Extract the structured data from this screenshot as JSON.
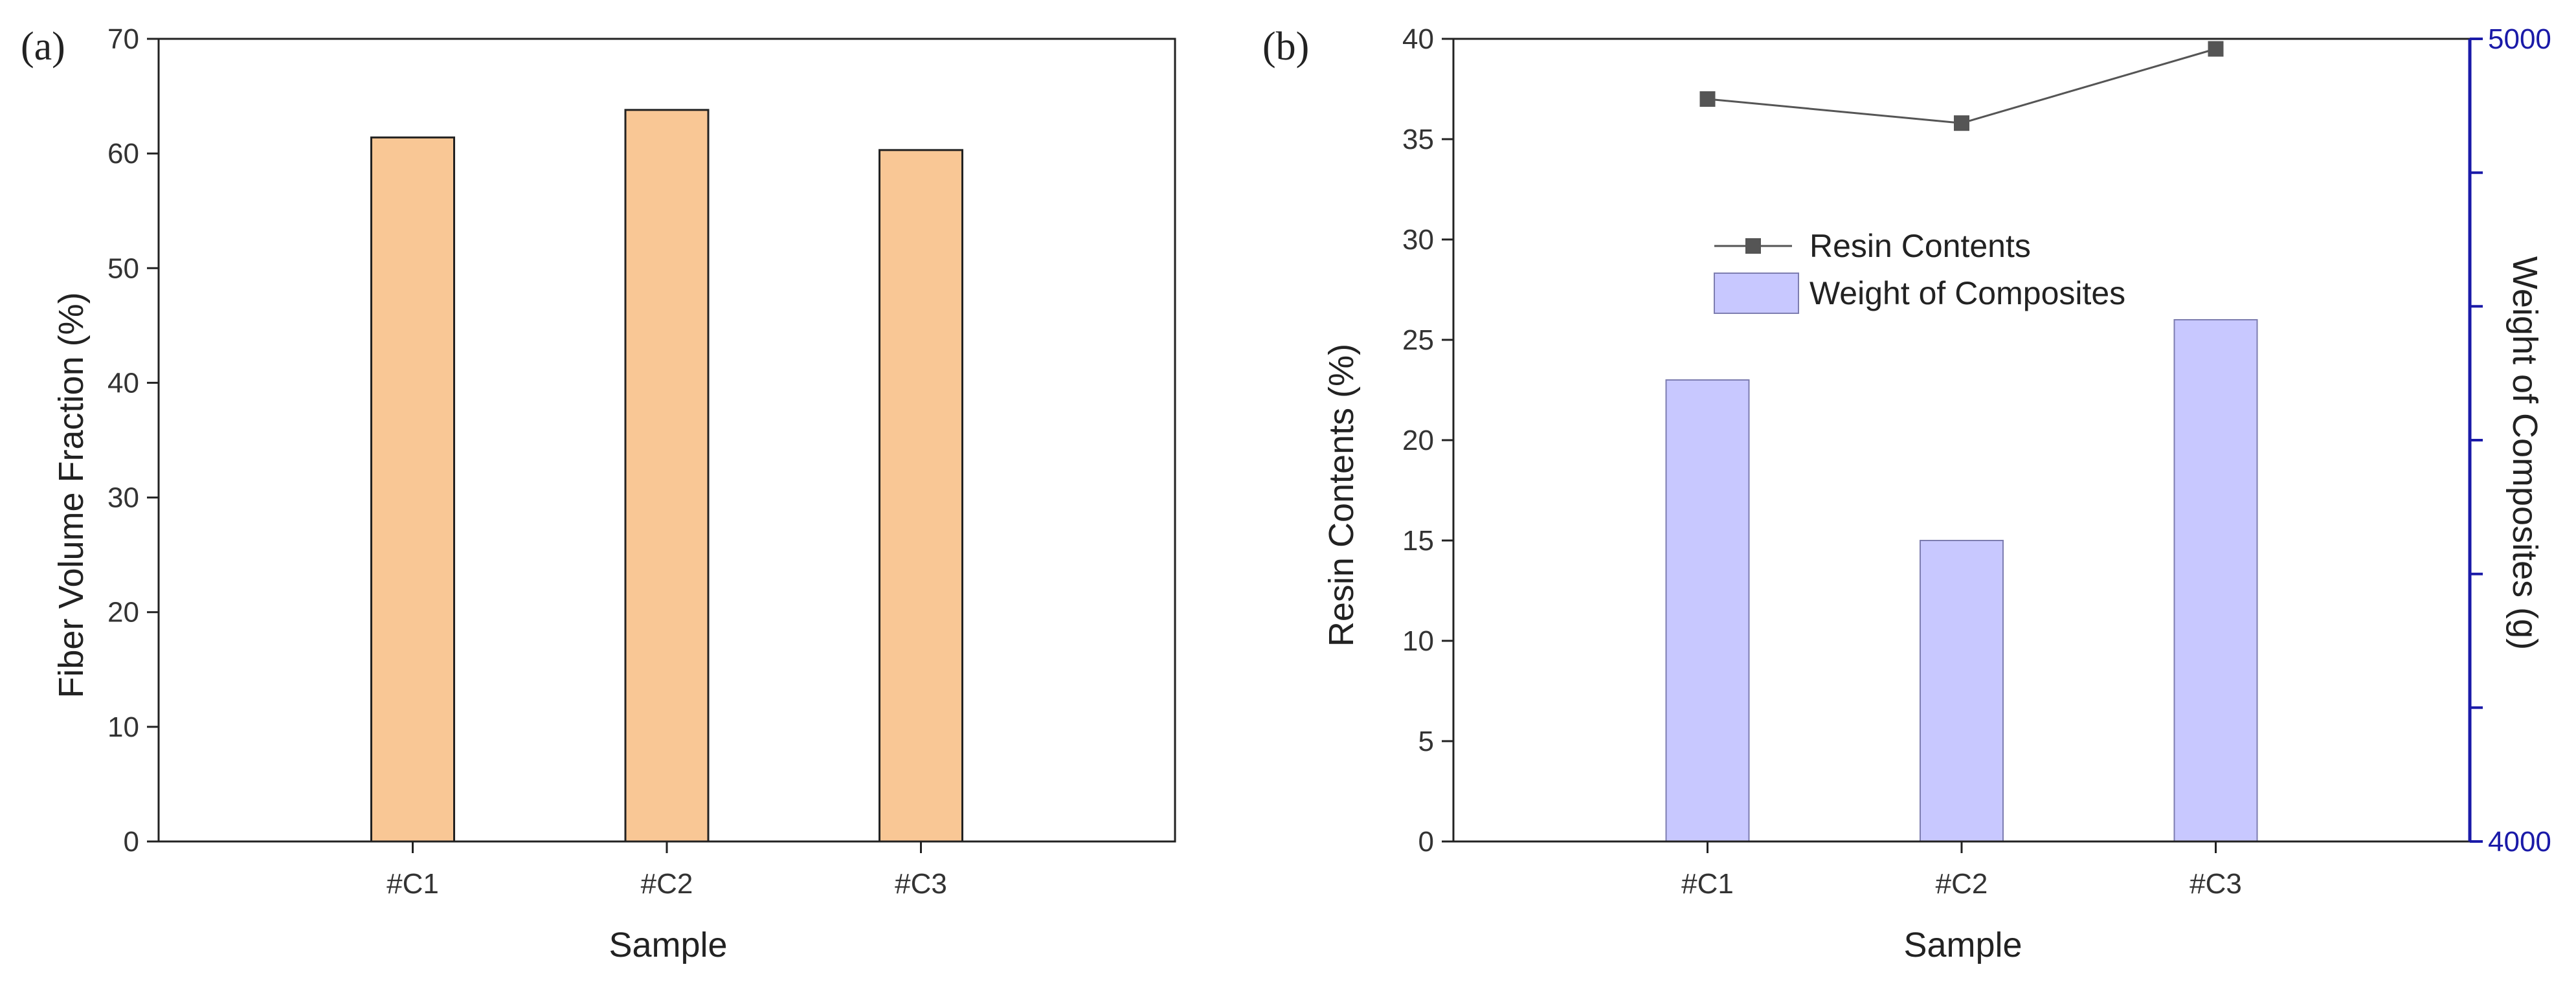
{
  "chart_data": [
    {
      "panel_label": "(a)",
      "type": "bar",
      "categories": [
        "#C1",
        "#C2",
        "#C3"
      ],
      "values": [
        61.4,
        63.8,
        60.3
      ],
      "xlabel": "Sample",
      "ylabel": "Fiber Volume Fraction (%)",
      "ylim": [
        0,
        70
      ],
      "yticks": [
        0,
        10,
        20,
        30,
        40,
        50,
        60,
        70
      ],
      "grid": false,
      "colors": {
        "bar_fill": "#f9c795",
        "bar_stroke": "#222222"
      }
    },
    {
      "panel_label": "(b)",
      "type": "bar+line",
      "categories": [
        "#C1",
        "#C2",
        "#C3"
      ],
      "xlabel": "Sample",
      "ylabel": "Resin Contents (%)",
      "y2label": "Weight of Composites (g)",
      "ylim": [
        0,
        40
      ],
      "yticks": [
        0,
        5,
        10,
        15,
        20,
        25,
        30,
        35,
        40
      ],
      "y2lim": [
        4000,
        5000
      ],
      "y2ticks": [
        4000,
        4166.7,
        4333.3,
        4500,
        4666.7,
        4833.3,
        5000
      ],
      "y2tick_labels": [
        "4000",
        "",
        "",
        "",
        "",
        "",
        "5000"
      ],
      "series": [
        {
          "name": "Resin Contents",
          "type": "line",
          "axis": "left",
          "values": [
            37.0,
            35.8,
            39.5
          ],
          "color": "#555555"
        },
        {
          "name": "Weight of Composites",
          "type": "bar",
          "axis": "right",
          "values": [
            4575,
            4375,
            4650
          ],
          "color": "#c8c8ff"
        }
      ],
      "legend": {
        "placement": "center-top",
        "entries": [
          "Resin Contents",
          "Weight of Composites"
        ]
      },
      "grid": false,
      "colors": {
        "right_axis": "#1a1aa8",
        "bar_stroke": "#7d7db0"
      }
    }
  ]
}
